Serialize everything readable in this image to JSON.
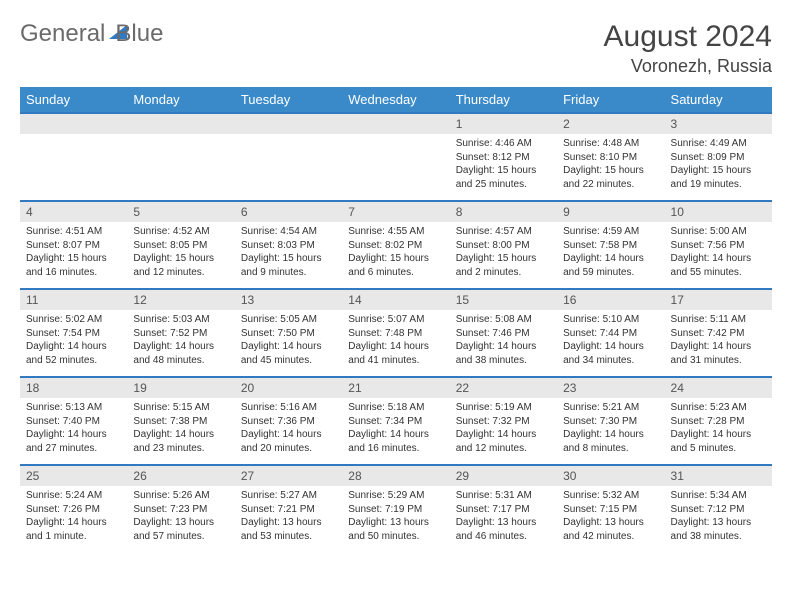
{
  "logo": {
    "part1": "General",
    "part2": "Blue"
  },
  "header": {
    "title": "August 2024",
    "location": "Voronezh, Russia"
  },
  "colors": {
    "header_bg": "#3a8ac9",
    "header_text": "#ffffff",
    "row_divider": "#2f7ac0",
    "daynum_bg": "#e8e8e8",
    "body_text": "#333333"
  },
  "day_names": [
    "Sunday",
    "Monday",
    "Tuesday",
    "Wednesday",
    "Thursday",
    "Friday",
    "Saturday"
  ],
  "weeks": [
    [
      {
        "n": "",
        "sr": "",
        "ss": "",
        "dl": ""
      },
      {
        "n": "",
        "sr": "",
        "ss": "",
        "dl": ""
      },
      {
        "n": "",
        "sr": "",
        "ss": "",
        "dl": ""
      },
      {
        "n": "",
        "sr": "",
        "ss": "",
        "dl": ""
      },
      {
        "n": "1",
        "sr": "Sunrise: 4:46 AM",
        "ss": "Sunset: 8:12 PM",
        "dl": "Daylight: 15 hours and 25 minutes."
      },
      {
        "n": "2",
        "sr": "Sunrise: 4:48 AM",
        "ss": "Sunset: 8:10 PM",
        "dl": "Daylight: 15 hours and 22 minutes."
      },
      {
        "n": "3",
        "sr": "Sunrise: 4:49 AM",
        "ss": "Sunset: 8:09 PM",
        "dl": "Daylight: 15 hours and 19 minutes."
      }
    ],
    [
      {
        "n": "4",
        "sr": "Sunrise: 4:51 AM",
        "ss": "Sunset: 8:07 PM",
        "dl": "Daylight: 15 hours and 16 minutes."
      },
      {
        "n": "5",
        "sr": "Sunrise: 4:52 AM",
        "ss": "Sunset: 8:05 PM",
        "dl": "Daylight: 15 hours and 12 minutes."
      },
      {
        "n": "6",
        "sr": "Sunrise: 4:54 AM",
        "ss": "Sunset: 8:03 PM",
        "dl": "Daylight: 15 hours and 9 minutes."
      },
      {
        "n": "7",
        "sr": "Sunrise: 4:55 AM",
        "ss": "Sunset: 8:02 PM",
        "dl": "Daylight: 15 hours and 6 minutes."
      },
      {
        "n": "8",
        "sr": "Sunrise: 4:57 AM",
        "ss": "Sunset: 8:00 PM",
        "dl": "Daylight: 15 hours and 2 minutes."
      },
      {
        "n": "9",
        "sr": "Sunrise: 4:59 AM",
        "ss": "Sunset: 7:58 PM",
        "dl": "Daylight: 14 hours and 59 minutes."
      },
      {
        "n": "10",
        "sr": "Sunrise: 5:00 AM",
        "ss": "Sunset: 7:56 PM",
        "dl": "Daylight: 14 hours and 55 minutes."
      }
    ],
    [
      {
        "n": "11",
        "sr": "Sunrise: 5:02 AM",
        "ss": "Sunset: 7:54 PM",
        "dl": "Daylight: 14 hours and 52 minutes."
      },
      {
        "n": "12",
        "sr": "Sunrise: 5:03 AM",
        "ss": "Sunset: 7:52 PM",
        "dl": "Daylight: 14 hours and 48 minutes."
      },
      {
        "n": "13",
        "sr": "Sunrise: 5:05 AM",
        "ss": "Sunset: 7:50 PM",
        "dl": "Daylight: 14 hours and 45 minutes."
      },
      {
        "n": "14",
        "sr": "Sunrise: 5:07 AM",
        "ss": "Sunset: 7:48 PM",
        "dl": "Daylight: 14 hours and 41 minutes."
      },
      {
        "n": "15",
        "sr": "Sunrise: 5:08 AM",
        "ss": "Sunset: 7:46 PM",
        "dl": "Daylight: 14 hours and 38 minutes."
      },
      {
        "n": "16",
        "sr": "Sunrise: 5:10 AM",
        "ss": "Sunset: 7:44 PM",
        "dl": "Daylight: 14 hours and 34 minutes."
      },
      {
        "n": "17",
        "sr": "Sunrise: 5:11 AM",
        "ss": "Sunset: 7:42 PM",
        "dl": "Daylight: 14 hours and 31 minutes."
      }
    ],
    [
      {
        "n": "18",
        "sr": "Sunrise: 5:13 AM",
        "ss": "Sunset: 7:40 PM",
        "dl": "Daylight: 14 hours and 27 minutes."
      },
      {
        "n": "19",
        "sr": "Sunrise: 5:15 AM",
        "ss": "Sunset: 7:38 PM",
        "dl": "Daylight: 14 hours and 23 minutes."
      },
      {
        "n": "20",
        "sr": "Sunrise: 5:16 AM",
        "ss": "Sunset: 7:36 PM",
        "dl": "Daylight: 14 hours and 20 minutes."
      },
      {
        "n": "21",
        "sr": "Sunrise: 5:18 AM",
        "ss": "Sunset: 7:34 PM",
        "dl": "Daylight: 14 hours and 16 minutes."
      },
      {
        "n": "22",
        "sr": "Sunrise: 5:19 AM",
        "ss": "Sunset: 7:32 PM",
        "dl": "Daylight: 14 hours and 12 minutes."
      },
      {
        "n": "23",
        "sr": "Sunrise: 5:21 AM",
        "ss": "Sunset: 7:30 PM",
        "dl": "Daylight: 14 hours and 8 minutes."
      },
      {
        "n": "24",
        "sr": "Sunrise: 5:23 AM",
        "ss": "Sunset: 7:28 PM",
        "dl": "Daylight: 14 hours and 5 minutes."
      }
    ],
    [
      {
        "n": "25",
        "sr": "Sunrise: 5:24 AM",
        "ss": "Sunset: 7:26 PM",
        "dl": "Daylight: 14 hours and 1 minute."
      },
      {
        "n": "26",
        "sr": "Sunrise: 5:26 AM",
        "ss": "Sunset: 7:23 PM",
        "dl": "Daylight: 13 hours and 57 minutes."
      },
      {
        "n": "27",
        "sr": "Sunrise: 5:27 AM",
        "ss": "Sunset: 7:21 PM",
        "dl": "Daylight: 13 hours and 53 minutes."
      },
      {
        "n": "28",
        "sr": "Sunrise: 5:29 AM",
        "ss": "Sunset: 7:19 PM",
        "dl": "Daylight: 13 hours and 50 minutes."
      },
      {
        "n": "29",
        "sr": "Sunrise: 5:31 AM",
        "ss": "Sunset: 7:17 PM",
        "dl": "Daylight: 13 hours and 46 minutes."
      },
      {
        "n": "30",
        "sr": "Sunrise: 5:32 AM",
        "ss": "Sunset: 7:15 PM",
        "dl": "Daylight: 13 hours and 42 minutes."
      },
      {
        "n": "31",
        "sr": "Sunrise: 5:34 AM",
        "ss": "Sunset: 7:12 PM",
        "dl": "Daylight: 13 hours and 38 minutes."
      }
    ]
  ]
}
